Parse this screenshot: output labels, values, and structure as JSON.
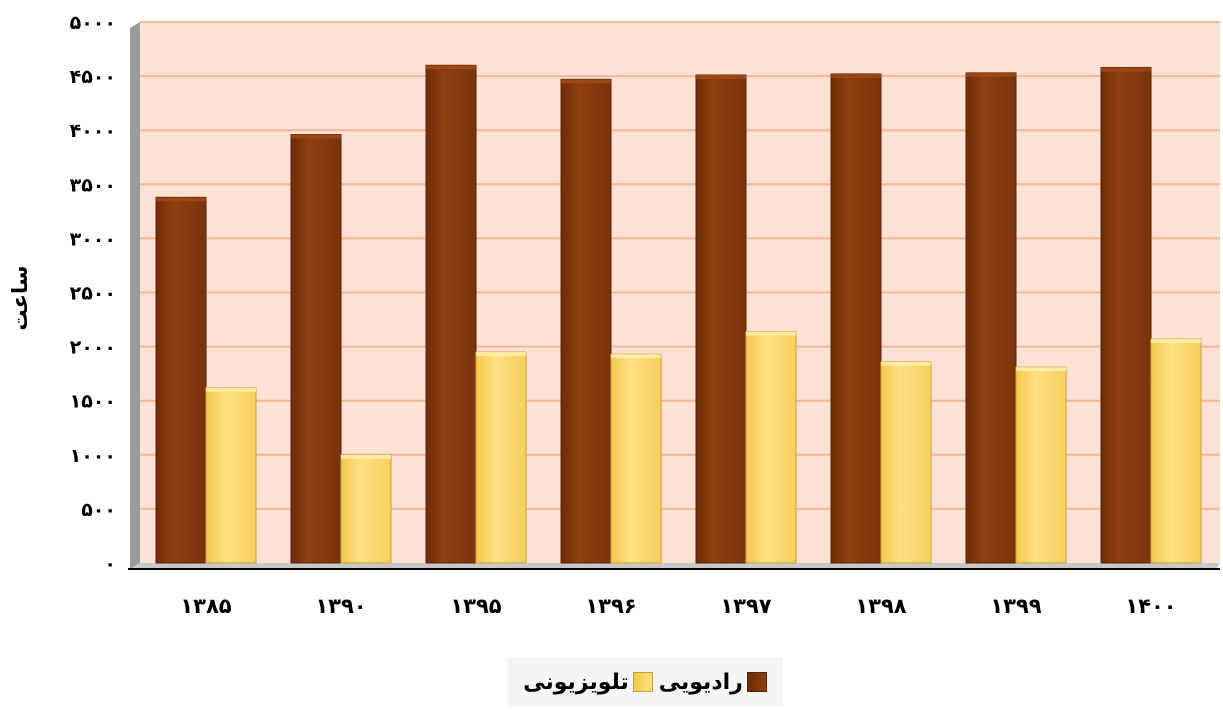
{
  "chart_data": {
    "type": "bar",
    "title": "",
    "ylabel": "ساعت",
    "xlabel": "",
    "categories": [
      "۱۳۸۵",
      "۱۳۹۰",
      "۱۳۹۵",
      "۱۳۹۶",
      "۱۳۹۷",
      "۱۳۹۸",
      "۱۳۹۹",
      "۱۴۰۰"
    ],
    "series": [
      {
        "name": "رادیویی",
        "color": "#8b3a0f",
        "values": [
          3380,
          3960,
          4600,
          4470,
          4510,
          4520,
          4530,
          4580
        ]
      },
      {
        "name": "تلویزیونی",
        "color": "#ffd966",
        "values": [
          1620,
          1000,
          1950,
          1930,
          2140,
          1860,
          1810,
          2070
        ]
      }
    ],
    "ylim": [
      0,
      5000
    ],
    "yticks": [
      {
        "value": 0,
        "label": "۰"
      },
      {
        "value": 500,
        "label": "۵۰۰"
      },
      {
        "value": 1000,
        "label": "۱۰۰۰"
      },
      {
        "value": 1500,
        "label": "۱۵۰۰"
      },
      {
        "value": 2000,
        "label": "۲۰۰۰"
      },
      {
        "value": 2500,
        "label": "۲۵۰۰"
      },
      {
        "value": 3000,
        "label": "۳۰۰۰"
      },
      {
        "value": 3500,
        "label": "۳۵۰۰"
      },
      {
        "value": 4000,
        "label": "۴۰۰۰"
      },
      {
        "value": 4500,
        "label": "۴۵۰۰"
      },
      {
        "value": 5000,
        "label": "۵۰۰۰"
      }
    ],
    "grid": true,
    "legend_position": "bottom",
    "plot_background": "#fce1d4",
    "gridline_color": "#f0b896"
  }
}
